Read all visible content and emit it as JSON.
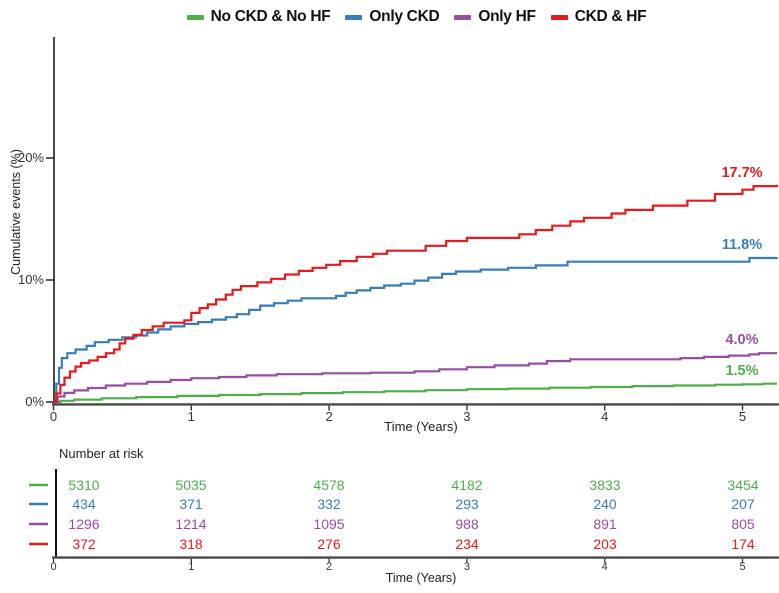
{
  "figure": {
    "y_axis": {
      "label": "Cumulative events (%)",
      "ticks": [
        "0%",
        "10%",
        "20%"
      ],
      "tick_values": [
        0,
        10,
        20
      ]
    },
    "x_axis": {
      "label": "Time (Years)",
      "ticks": [
        "0",
        "1",
        "2",
        "3",
        "4",
        "5"
      ],
      "tick_values": [
        0,
        1,
        2,
        3,
        4,
        5
      ]
    },
    "risk_table": {
      "title": "Number at risk",
      "x_axis_label": "Time (Years)",
      "ticks": [
        "0",
        "1",
        "2",
        "3",
        "4",
        "5"
      ]
    }
  },
  "chart_data": {
    "type": "line",
    "subtype": "kaplan-meier-cumulative-incidence-step-curves",
    "title": "",
    "xlabel": "Time (Years)",
    "ylabel": "Cumulative events (%)",
    "xlim": [
      0,
      5.25
    ],
    "ylim": [
      0,
      29
    ],
    "yticks_pct": [
      0,
      10,
      20
    ],
    "xticks_years": [
      0,
      1,
      2,
      3,
      4,
      5
    ],
    "grid": false,
    "legend_position": "top",
    "at_risk_times": [
      0,
      1,
      2,
      3,
      4,
      5
    ],
    "series": [
      {
        "name": "No CKD & No HF",
        "color": "#4daf4a",
        "end_label": "1.5%",
        "end_value": 1.5,
        "at_risk": [
          5310,
          5035,
          4578,
          4182,
          3833,
          3454
        ],
        "points": [
          [
            0,
            0
          ],
          [
            0.05,
            0.1
          ],
          [
            0.15,
            0.2
          ],
          [
            0.35,
            0.3
          ],
          [
            0.6,
            0.4
          ],
          [
            0.9,
            0.5
          ],
          [
            1.2,
            0.57
          ],
          [
            1.5,
            0.65
          ],
          [
            1.8,
            0.73
          ],
          [
            2.1,
            0.8
          ],
          [
            2.4,
            0.88
          ],
          [
            2.7,
            0.97
          ],
          [
            3.0,
            1.05
          ],
          [
            3.3,
            1.1
          ],
          [
            3.6,
            1.17
          ],
          [
            3.9,
            1.23
          ],
          [
            4.2,
            1.3
          ],
          [
            4.5,
            1.35
          ],
          [
            4.8,
            1.42
          ],
          [
            5.0,
            1.45
          ],
          [
            5.15,
            1.5
          ],
          [
            5.25,
            1.5
          ]
        ]
      },
      {
        "name": "Only CKD",
        "color": "#377eb8",
        "end_label": "11.8%",
        "end_value": 11.8,
        "at_risk": [
          434,
          371,
          332,
          293,
          240,
          207
        ],
        "points": [
          [
            0,
            0
          ],
          [
            0.02,
            1.5
          ],
          [
            0.04,
            2.8
          ],
          [
            0.06,
            3.6
          ],
          [
            0.1,
            4.0
          ],
          [
            0.16,
            4.3
          ],
          [
            0.24,
            4.6
          ],
          [
            0.3,
            4.9
          ],
          [
            0.4,
            5.1
          ],
          [
            0.5,
            5.3
          ],
          [
            0.6,
            5.45
          ],
          [
            0.68,
            5.7
          ],
          [
            0.76,
            5.95
          ],
          [
            0.85,
            6.2
          ],
          [
            0.95,
            6.4
          ],
          [
            1.05,
            6.55
          ],
          [
            1.15,
            6.75
          ],
          [
            1.25,
            6.95
          ],
          [
            1.33,
            7.2
          ],
          [
            1.42,
            7.55
          ],
          [
            1.5,
            7.9
          ],
          [
            1.6,
            8.1
          ],
          [
            1.7,
            8.3
          ],
          [
            1.8,
            8.5
          ],
          [
            2.05,
            8.7
          ],
          [
            2.12,
            8.95
          ],
          [
            2.2,
            9.15
          ],
          [
            2.3,
            9.35
          ],
          [
            2.4,
            9.55
          ],
          [
            2.52,
            9.7
          ],
          [
            2.62,
            9.95
          ],
          [
            2.72,
            10.2
          ],
          [
            2.82,
            10.5
          ],
          [
            2.92,
            10.7
          ],
          [
            3.1,
            10.85
          ],
          [
            3.3,
            11.0
          ],
          [
            3.5,
            11.2
          ],
          [
            3.73,
            11.5
          ],
          [
            5.05,
            11.8
          ],
          [
            5.25,
            11.85
          ]
        ]
      },
      {
        "name": "Only HF",
        "color": "#984ea3",
        "end_label": "4.0%",
        "end_value": 4.0,
        "at_risk": [
          1296,
          1214,
          1095,
          988,
          891,
          805
        ],
        "points": [
          [
            0,
            0
          ],
          [
            0.03,
            0.45
          ],
          [
            0.08,
            0.75
          ],
          [
            0.15,
            0.95
          ],
          [
            0.25,
            1.15
          ],
          [
            0.38,
            1.35
          ],
          [
            0.52,
            1.5
          ],
          [
            0.68,
            1.65
          ],
          [
            0.85,
            1.8
          ],
          [
            1.0,
            1.95
          ],
          [
            1.2,
            2.05
          ],
          [
            1.4,
            2.18
          ],
          [
            1.62,
            2.28
          ],
          [
            1.95,
            2.35
          ],
          [
            2.3,
            2.4
          ],
          [
            2.62,
            2.52
          ],
          [
            2.8,
            2.68
          ],
          [
            3.0,
            2.85
          ],
          [
            3.2,
            3.0
          ],
          [
            3.45,
            3.15
          ],
          [
            3.58,
            3.35
          ],
          [
            3.75,
            3.5
          ],
          [
            4.55,
            3.6
          ],
          [
            4.72,
            3.7
          ],
          [
            4.9,
            3.8
          ],
          [
            5.05,
            3.9
          ],
          [
            5.12,
            4.0
          ],
          [
            5.25,
            4.0
          ]
        ]
      },
      {
        "name": "CKD & HF",
        "color": "#e41a1c",
        "end_label": "17.7%",
        "end_value": 17.7,
        "at_risk": [
          372,
          318,
          276,
          234,
          203,
          174
        ],
        "points": [
          [
            0,
            0
          ],
          [
            0.02,
            0.7
          ],
          [
            0.05,
            1.4
          ],
          [
            0.08,
            2.0
          ],
          [
            0.12,
            2.5
          ],
          [
            0.16,
            2.9
          ],
          [
            0.2,
            3.2
          ],
          [
            0.26,
            3.4
          ],
          [
            0.32,
            3.7
          ],
          [
            0.38,
            4.0
          ],
          [
            0.44,
            4.3
          ],
          [
            0.48,
            4.8
          ],
          [
            0.52,
            5.2
          ],
          [
            0.58,
            5.5
          ],
          [
            0.64,
            5.9
          ],
          [
            0.72,
            6.2
          ],
          [
            0.8,
            6.5
          ],
          [
            0.95,
            6.7
          ],
          [
            1.0,
            7.3
          ],
          [
            1.06,
            7.7
          ],
          [
            1.12,
            8.0
          ],
          [
            1.18,
            8.4
          ],
          [
            1.25,
            8.8
          ],
          [
            1.3,
            9.2
          ],
          [
            1.36,
            9.5
          ],
          [
            1.48,
            9.8
          ],
          [
            1.58,
            10.1
          ],
          [
            1.68,
            10.45
          ],
          [
            1.78,
            10.75
          ],
          [
            1.88,
            11.0
          ],
          [
            1.98,
            11.25
          ],
          [
            2.08,
            11.55
          ],
          [
            2.2,
            11.9
          ],
          [
            2.32,
            12.15
          ],
          [
            2.42,
            12.4
          ],
          [
            2.7,
            12.8
          ],
          [
            2.85,
            13.2
          ],
          [
            3.0,
            13.45
          ],
          [
            3.38,
            13.75
          ],
          [
            3.5,
            14.1
          ],
          [
            3.62,
            14.45
          ],
          [
            3.75,
            14.8
          ],
          [
            3.85,
            15.1
          ],
          [
            4.05,
            15.45
          ],
          [
            4.15,
            15.75
          ],
          [
            4.35,
            16.1
          ],
          [
            4.6,
            16.5
          ],
          [
            4.8,
            17.05
          ],
          [
            5.0,
            17.4
          ],
          [
            5.08,
            17.7
          ],
          [
            5.25,
            17.8
          ]
        ]
      }
    ]
  }
}
